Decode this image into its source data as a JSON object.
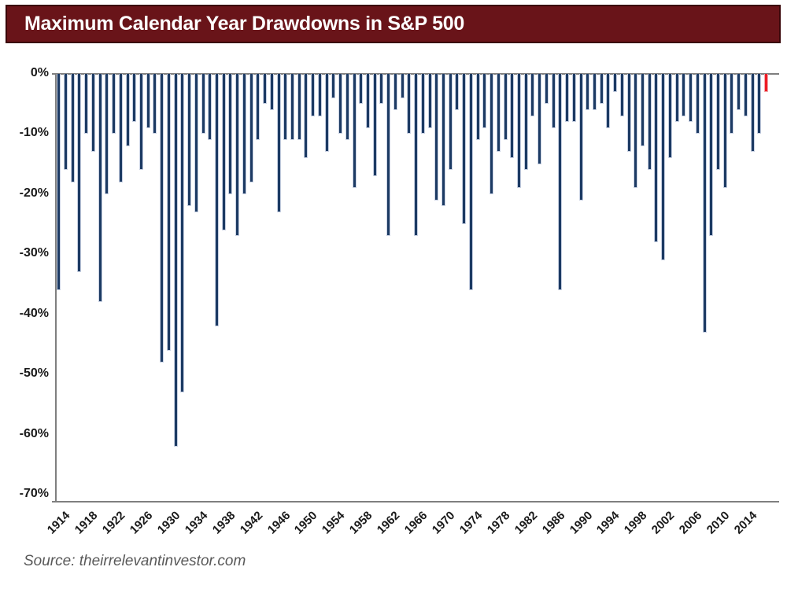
{
  "title": {
    "text": "Maximum Calendar Year Drawdowns in S&P 500",
    "band_color": "#691419",
    "band_border_color": "#3a0609",
    "text_color": "#ffffff"
  },
  "source": {
    "text": "Source: theirrelevantinvestor.com"
  },
  "chart_data": {
    "type": "bar",
    "title": "Maximum Calendar Year Drawdowns in S&P 500",
    "xlabel": "",
    "ylabel": "",
    "ylim": [
      -71.5,
      0
    ],
    "grid": false,
    "legend": "none",
    "bar_color": "#1c3a63",
    "bar_edge_color": "#c7d0e2",
    "highlight_year": 2017,
    "highlight_color": "#ee1c25",
    "axis_color": "#7f7f7f",
    "y_tick_labels": [
      "0%",
      "-10%",
      "-20%",
      "-30%",
      "-40%",
      "-50%",
      "-60%",
      "-70%"
    ],
    "y_tick_values": [
      0,
      -10,
      -20,
      -30,
      -40,
      -50,
      -60,
      -70
    ],
    "x_tick_labels": [
      "1914",
      "1918",
      "1922",
      "1926",
      "1930",
      "1934",
      "1938",
      "1942",
      "1946",
      "1950",
      "1954",
      "1958",
      "1962",
      "1966",
      "1970",
      "1974",
      "1978",
      "1982",
      "1986",
      "1990",
      "1994",
      "1998",
      "2002",
      "2006",
      "2010",
      "2014"
    ],
    "x": [
      1914,
      1915,
      1916,
      1917,
      1918,
      1919,
      1920,
      1921,
      1922,
      1923,
      1924,
      1925,
      1926,
      1927,
      1928,
      1929,
      1930,
      1931,
      1932,
      1933,
      1934,
      1935,
      1936,
      1937,
      1938,
      1939,
      1940,
      1941,
      1942,
      1943,
      1944,
      1945,
      1946,
      1947,
      1948,
      1949,
      1950,
      1951,
      1952,
      1953,
      1954,
      1955,
      1956,
      1957,
      1958,
      1959,
      1960,
      1961,
      1962,
      1963,
      1964,
      1965,
      1966,
      1967,
      1968,
      1969,
      1970,
      1971,
      1972,
      1973,
      1974,
      1975,
      1976,
      1977,
      1978,
      1979,
      1980,
      1981,
      1982,
      1983,
      1984,
      1985,
      1986,
      1987,
      1988,
      1989,
      1990,
      1991,
      1992,
      1993,
      1994,
      1995,
      1996,
      1997,
      1998,
      1999,
      2000,
      2001,
      2002,
      2003,
      2004,
      2005,
      2006,
      2007,
      2008,
      2009,
      2010,
      2011,
      2012,
      2013,
      2014,
      2015,
      2016,
      2017
    ],
    "values": [
      -36,
      -16,
      -18,
      -33,
      -10,
      -13,
      -38,
      -20,
      -10,
      -18,
      -12,
      -8,
      -16,
      -9,
      -10,
      -48,
      -46,
      -62,
      -53,
      -22,
      -23,
      -10,
      -11,
      -42,
      -26,
      -20,
      -27,
      -20,
      -18,
      -11,
      -5,
      -6,
      -23,
      -11,
      -11,
      -11,
      -14,
      -7,
      -7,
      -13,
      -4,
      -10,
      -11,
      -19,
      -5,
      -9,
      -17,
      -5,
      -27,
      -6,
      -4,
      -10,
      -27,
      -10,
      -9,
      -21,
      -22,
      -16,
      -6,
      -25,
      -36,
      -11,
      -9,
      -20,
      -13,
      -11,
      -14,
      -19,
      -16,
      -7,
      -15,
      -5,
      -9,
      -36,
      -8,
      -8,
      -21,
      -6,
      -6,
      -5,
      -9,
      -3,
      -7,
      -13,
      -19,
      -12,
      -16,
      -28,
      -31,
      -14,
      -8,
      -7,
      -8,
      -10,
      -43,
      -27,
      -16,
      -19,
      -10,
      -6,
      -7,
      -13,
      -10,
      -3
    ]
  }
}
